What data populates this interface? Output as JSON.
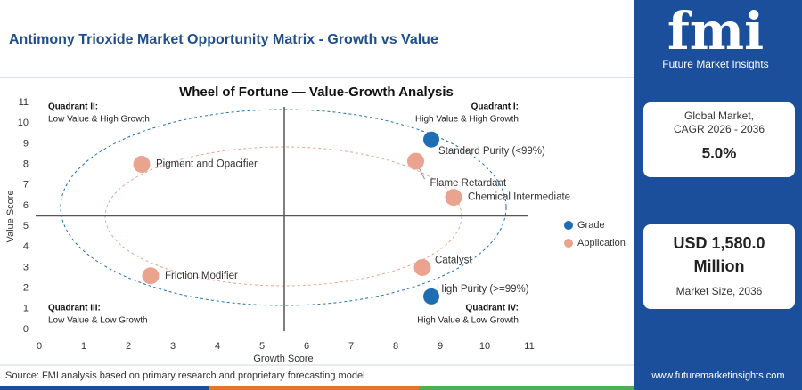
{
  "header": {
    "title": "Antimony Trioxide Market Opportunity Matrix - Growth vs Value"
  },
  "brand": {
    "logo": "fmi",
    "name": "Future Market Insights"
  },
  "cards": [
    {
      "label": "Global Market, CAGR 2026 - 2036",
      "value": "5.0%"
    },
    {
      "value": "USD 1,580.0 Million",
      "label": "Market Size, 2036"
    }
  ],
  "chart_data": {
    "type": "scatter",
    "title": "Wheel of Fortune — Value-Growth Analysis",
    "x_label": "Growth Score",
    "y_label": "Value Score",
    "xlim": [
      0,
      11
    ],
    "ylim": [
      0,
      11
    ],
    "xticks": [
      0,
      1,
      2,
      3,
      4,
      5,
      6,
      7,
      8,
      9,
      10,
      11
    ],
    "yticks": [
      0,
      1,
      2,
      3,
      4,
      5,
      6,
      7,
      8,
      9,
      10,
      11
    ],
    "quadrant_lines": [
      5.5,
      5.5
    ],
    "series": [
      {
        "name": "Grade",
        "color": "#1f6db3",
        "x": [
          8.8,
          8.8
        ],
        "values": [
          9.2,
          1.6
        ],
        "labels": [
          "Standard Purity (<99%)",
          "High Purity (>=99%)"
        ]
      },
      {
        "name": "Application",
        "color": "#e9a38e",
        "x": [
          8.45,
          9.3,
          2.3,
          2.5,
          8.6
        ],
        "values": [
          8.15,
          6.4,
          8.0,
          2.6,
          3.0
        ],
        "labels": [
          "Flame Retardant",
          "Chemical Intermediate",
          "Pigment and Opacifier",
          "Friction Modifier",
          "Catalyst"
        ]
      }
    ],
    "quadrants": [
      {
        "name": "Quadrant II:",
        "text": "Low Value & High Growth"
      },
      {
        "name": "Quadrant I:",
        "text": "High Value & High Growth"
      },
      {
        "name": "Quadrant III:",
        "text": "Low Value & Low Growth"
      },
      {
        "name": "Quadrant IV:",
        "text": "High Value & Low Growth"
      }
    ]
  },
  "footer": {
    "source": "Source: FMI analysis based on primary research and proprietary forecasting model",
    "website": "www.futuremarketinsights.com"
  }
}
